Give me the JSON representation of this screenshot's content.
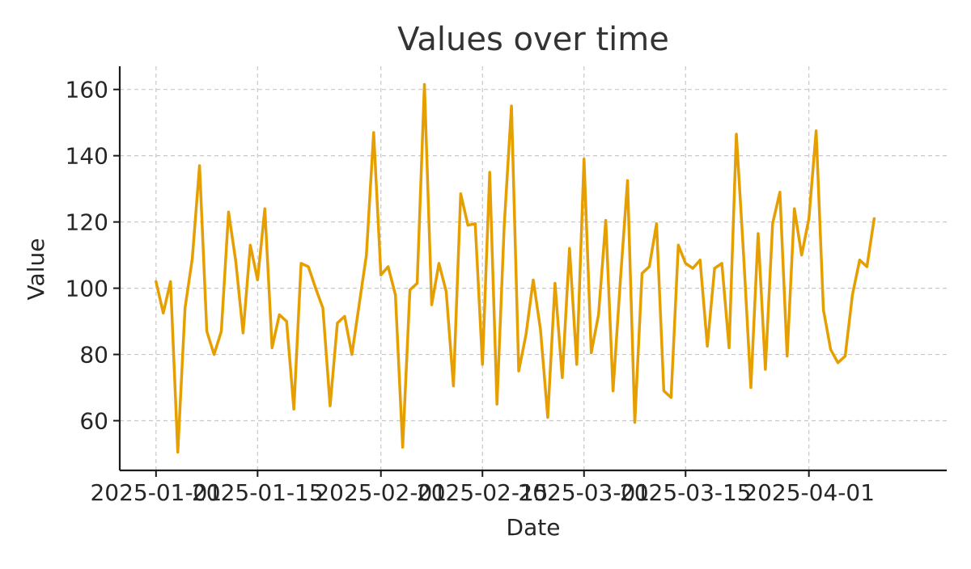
{
  "chart_data": {
    "type": "line",
    "title": "Values over time",
    "xlabel": "Date",
    "ylabel": "Value",
    "x_ticks": [
      "2025-01-01",
      "2025-01-15",
      "2025-02-01",
      "2025-02-15",
      "2025-03-01",
      "2025-03-15",
      "2025-04-01"
    ],
    "y_ticks": [
      60,
      80,
      100,
      120,
      140,
      160
    ],
    "xlim": [
      "2024-12-27",
      "2025-04-20"
    ],
    "ylim": [
      45,
      167
    ],
    "grid": true,
    "color": "#e69f00",
    "series": [
      {
        "start_date": "2025-01-01",
        "values": [
          102,
          92.5,
          102,
          50.5,
          94,
          109,
          137,
          87,
          80,
          87,
          123,
          108,
          86.5,
          113,
          102.5,
          124,
          82,
          92,
          90,
          63.5,
          107.5,
          106.5,
          100,
          94,
          64.5,
          89.5,
          91.5,
          80,
          95,
          110,
          147,
          104,
          106.5,
          98,
          52,
          99.5,
          101.5,
          161.5,
          95,
          107.5,
          99,
          70.5,
          128.5,
          119,
          119.5,
          77,
          135,
          65,
          119,
          155,
          75,
          86,
          102.5,
          87.5,
          61,
          101.5,
          73,
          112,
          77,
          139,
          80.5,
          92,
          120.5,
          69,
          102,
          132.5,
          59.5,
          104.5,
          106.5,
          119.5,
          69,
          67,
          113,
          107.5,
          106,
          108.5,
          82.5,
          106,
          107.5,
          82,
          146.5,
          110,
          70,
          116.5,
          75.5,
          119.5,
          129,
          79.5,
          124,
          110,
          121,
          147.5,
          93.5,
          81.5,
          77.5,
          79.5,
          98,
          108.5,
          106.5,
          121
        ]
      }
    ]
  }
}
